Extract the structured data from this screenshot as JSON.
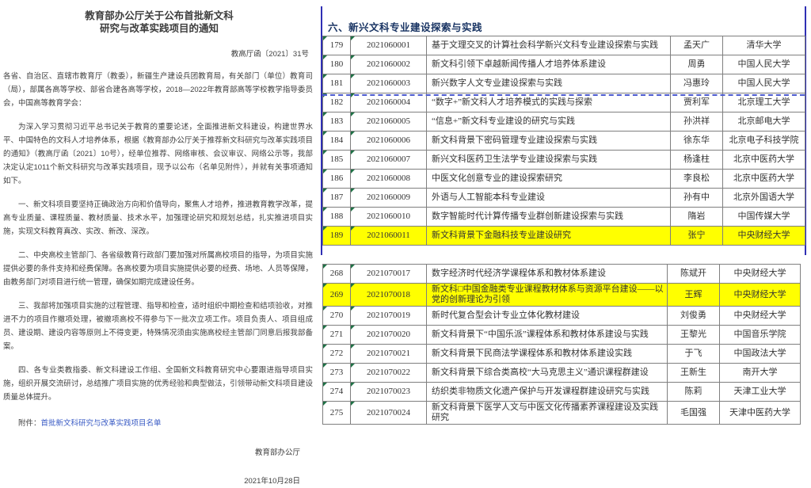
{
  "document": {
    "title_line1": "教育部办公厅关于公布首批新文科",
    "title_line2": "研究与改革实践项目的通知",
    "doc_number": "教高厅函〔2021〕31号",
    "salutation": "各省、自治区、直辖市教育厅（教委），新疆生产建设兵团教育局，有关部门（单位）教育司（局），部属各高等学校、部省合建各高等学校，2018—2022年教育部高等学校教学指导委员会，中国高等教育学会：",
    "paragraphs": [
      "为深入学习贯彻习近平总书记关于教育的重要论述，全面推进新文科建设，构建世界水平、中国特色的文科人才培养体系，根据《教育部办公厅关于推荐新文科研究与改革实践项目的通知》（教高厅函〔2021〕10号），经单位推荐、网络审核、会议审议、网络公示等，我部决定认定1011个新文科研究与改革实践项目，现予以公布（名单见附件），并就有关事项通知如下。",
      "一、新文科项目要坚持正确政治方向和价值导向，聚焦人才培养，推进教育教学改革，提高专业质量、课程质量、教材质量、技术水平，加强理论研究和规划总结，扎实推进项目实施，实现文科教育真改、实改、新改、深改。",
      "二、中央高校主管部门、各省级教育行政部门要加强对所属高校项目的指导，为项目实施提供必要的条件支持和经费保障。各高校要为项目实施提供必要的经费、场地、人员等保障，由教务部门对项目进行统一管理，确保如期完成建设任务。",
      "三、我部将加强项目实施的过程管理、指导和检查，适时组织中期检查和结项验收，对推进不力的项目作撤项处理，被撤项高校不得参与下一批次立项工作。项目负责人、项目组成员、建设期、建设内容等原则上不得变更，特殊情况须由实施高校经主管部门同意后报我部备案。",
      "四、各专业类教指委、新文科建设工作组、全国新文科教育研究中心要跟进指导项目实施，组织开展交流研讨，总结推广项目实施的优秀经验和典型做法，引领带动新文科项目建设质量总体提升。"
    ],
    "attachment_label": "附件：",
    "attachment_link_text": "首批新文科研究与改革实践项目名单",
    "signer": "教育部办公厅",
    "date": "2021年10月28日"
  },
  "table_panel": {
    "section_title": "六、新兴文科专业建设探索与实践",
    "table1": {
      "rows": [
        {
          "no": "179",
          "code": "2021060001",
          "title": "基于文理交叉的计算社会科学新兴文科专业建设探索与实践",
          "leader": "孟天广",
          "univ": "清华大学",
          "highlighted": false
        },
        {
          "no": "180",
          "code": "2021060002",
          "title": "新文科引领下卓越新闻传播人才培养体系建设",
          "leader": "周勇",
          "univ": "中国人民大学",
          "highlighted": false
        },
        {
          "no": "181",
          "code": "2021060003",
          "title": "新兴数字人文专业建设探索与实践",
          "leader": "冯惠玲",
          "univ": "中国人民大学",
          "highlighted": false
        },
        {
          "no": "182",
          "code": "2021060004",
          "title": "“数字+”新文科人才培养模式的实践与探索",
          "leader": "贾利军",
          "univ": "北京理工大学",
          "highlighted": false
        },
        {
          "no": "183",
          "code": "2021060005",
          "title": "“信息+”新文科专业建设的研究与实践",
          "leader": "孙洪祥",
          "univ": "北京邮电大学",
          "highlighted": false
        },
        {
          "no": "184",
          "code": "2021060006",
          "title": "新文科背景下密码管理专业建设探索与实践",
          "leader": "徐东华",
          "univ": "北京电子科技学院",
          "highlighted": false
        },
        {
          "no": "185",
          "code": "2021060007",
          "title": "新兴文科医药卫生法学专业建设探索与实践",
          "leader": "杨逢柱",
          "univ": "北京中医药大学",
          "highlighted": false
        },
        {
          "no": "186",
          "code": "2021060008",
          "title": "中医文化创意专业的建设探索研究",
          "leader": "李良松",
          "univ": "北京中医药大学",
          "highlighted": false
        },
        {
          "no": "187",
          "code": "2021060009",
          "title": "外语与人工智能本科专业建设",
          "leader": "孙有中",
          "univ": "北京外国语大学",
          "highlighted": false
        },
        {
          "no": "188",
          "code": "2021060010",
          "title": "数字智能时代计算传播专业群创新建设探索与实践",
          "leader": "隋岩",
          "univ": "中国传媒大学",
          "highlighted": false
        },
        {
          "no": "189",
          "code": "2021060011",
          "title": "新文科背景下金融科技专业建设研究",
          "leader": "张宁",
          "univ": "中央财经大学",
          "highlighted": true
        }
      ]
    },
    "table2": {
      "rows": [
        {
          "no": "268",
          "code": "2021070017",
          "title": "数字经济时代经济学课程体系和教材体系建设",
          "leader": "陈斌开",
          "univ": "中央财经大学",
          "highlighted": false
        },
        {
          "no": "269",
          "code": "2021070018",
          "title": "新文科□中国金融类专业课程教材体系与资源平台建设——以党的创新理论为引领",
          "leader": "王辉",
          "univ": "中央财经大学",
          "highlighted": true
        },
        {
          "no": "270",
          "code": "2021070019",
          "title": "新时代复合型会计专业立体化教材建设",
          "leader": "刘俊勇",
          "univ": "中央财经大学",
          "highlighted": false
        },
        {
          "no": "271",
          "code": "2021070020",
          "title": "新文科背景下“中国乐派”课程体系和教材体系建设与实践",
          "leader": "王黎光",
          "univ": "中国音乐学院",
          "highlighted": false
        },
        {
          "no": "272",
          "code": "2021070021",
          "title": "新文科背景下民商法学课程体系和教材体系建设实践",
          "leader": "于飞",
          "univ": "中国政法大学",
          "highlighted": false
        },
        {
          "no": "273",
          "code": "2021070022",
          "title": "新文科背景下综合类高校“大马克思主义”通识课程群建设",
          "leader": "王新生",
          "univ": "南开大学",
          "highlighted": false
        },
        {
          "no": "274",
          "code": "2021070023",
          "title": "纺织类非物质文化遗产保护与开发课程群建设研究与实践",
          "leader": "陈莉",
          "univ": "天津工业大学",
          "highlighted": false
        },
        {
          "no": "275",
          "code": "2021070024",
          "title": "新文科背景下医学人文与中医文化传播素养课程建设及实践研究",
          "leader": "毛国强",
          "univ": "天津中医药大学",
          "highlighted": false
        }
      ]
    }
  },
  "colors": {
    "highlight_yellow": "#ffff00",
    "page_break_blue": "#2f2fb4",
    "table_border_gray": "#7f7f7f",
    "section_title_navy": "#1a3564",
    "link_blue": "#3b5cc5",
    "error_triangle_green": "#1e7145"
  }
}
